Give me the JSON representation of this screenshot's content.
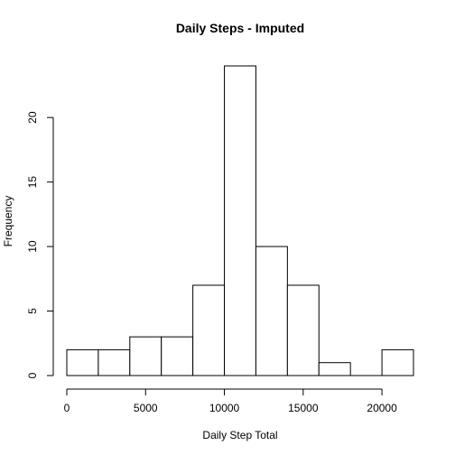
{
  "chart_data": {
    "type": "bar",
    "title": "Daily Steps - Imputed",
    "xlabel": "Daily Step Total",
    "ylabel": "Frequency",
    "bins": [
      {
        "start": 0,
        "end": 2000,
        "count": 2
      },
      {
        "start": 2000,
        "end": 4000,
        "count": 2
      },
      {
        "start": 4000,
        "end": 6000,
        "count": 3
      },
      {
        "start": 6000,
        "end": 8000,
        "count": 3
      },
      {
        "start": 8000,
        "end": 10000,
        "count": 7
      },
      {
        "start": 10000,
        "end": 12000,
        "count": 24
      },
      {
        "start": 12000,
        "end": 14000,
        "count": 10
      },
      {
        "start": 14000,
        "end": 16000,
        "count": 7
      },
      {
        "start": 16000,
        "end": 18000,
        "count": 1
      },
      {
        "start": 18000,
        "end": 20000,
        "count": 0
      },
      {
        "start": 20000,
        "end": 22000,
        "count": 2
      }
    ],
    "xlim": [
      0,
      22000
    ],
    "ylim": [
      0,
      24
    ],
    "x_ticks": [
      0,
      5000,
      10000,
      15000,
      20000
    ],
    "x_tick_labels": [
      "0",
      "5000",
      "10000",
      "15000",
      "20000"
    ],
    "y_ticks": [
      0,
      5,
      10,
      15,
      20
    ],
    "y_tick_labels": [
      "0",
      "5",
      "10",
      "15",
      "20"
    ],
    "grid": false,
    "bar_fill": "#ffffff",
    "bar_stroke": "#000000"
  }
}
